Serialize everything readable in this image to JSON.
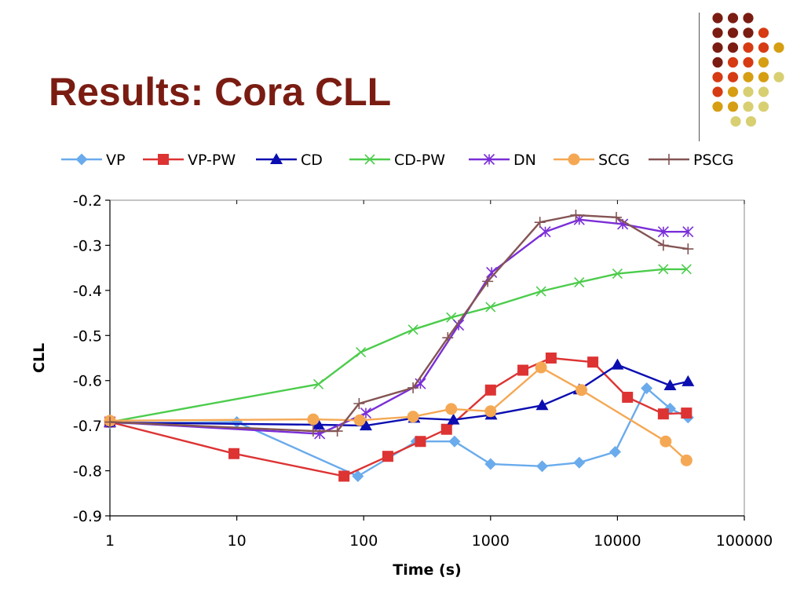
{
  "slide": {
    "title": "Results: Cora CLL"
  },
  "decoration": {
    "dot_rows": [
      [
        "#7a1c12",
        "#7a1c12",
        "#7a1c12"
      ],
      [
        "#7a1c12",
        "#7a1c12",
        "#7a1c12",
        "#d63b13"
      ],
      [
        "#7a1c12",
        "#7a1c12",
        "#d63b13",
        "#d63b13",
        "#d69e12"
      ],
      [
        "#7a1c12",
        "#d63b13",
        "#d63b13",
        "#d69e12"
      ],
      [
        "#d63b13",
        "#d63b13",
        "#d69e12",
        "#d69e12",
        "#d8cf72"
      ],
      [
        "#d63b13",
        "#d69e12",
        "#d8cf72",
        "#d8cf72"
      ],
      [
        "#d69e12",
        "#d69e12",
        "#d8cf72",
        "#d8cf72"
      ],
      [
        "#d8cf72",
        "#d8cf72"
      ]
    ]
  },
  "chart_data": {
    "type": "line",
    "title": "",
    "xlabel": "Time (s)",
    "ylabel": "CLL",
    "x_scale": "log",
    "xlim": [
      1,
      100000
    ],
    "ylim": [
      -0.9,
      -0.2
    ],
    "x_ticks": [
      1,
      10,
      100,
      1000,
      10000,
      100000
    ],
    "x_tick_labels": [
      "1",
      "10",
      "100",
      "1000",
      "10000",
      "100000"
    ],
    "y_ticks": [
      -0.2,
      -0.3,
      -0.4,
      -0.5,
      -0.6,
      -0.7,
      -0.8,
      -0.9
    ],
    "y_tick_labels": [
      "-0.2",
      "-0.3",
      "-0.4",
      "-0.5",
      "-0.6",
      "-0.7",
      "-0.8",
      "-0.9"
    ],
    "grid": false,
    "legend_position": "top",
    "series": [
      {
        "name": "VP",
        "color": "#6aabec",
        "marker": "diamond",
        "points": [
          [
            1,
            -0.695
          ],
          [
            10,
            -0.692
          ],
          [
            90,
            -0.812
          ],
          [
            260,
            -0.735
          ],
          [
            520,
            -0.735
          ],
          [
            1000,
            -0.785
          ],
          [
            2550,
            -0.79
          ],
          [
            5000,
            -0.782
          ],
          [
            9600,
            -0.758
          ],
          [
            17000,
            -0.617
          ],
          [
            26000,
            -0.662
          ],
          [
            36000,
            -0.682
          ]
        ]
      },
      {
        "name": "VP-PW",
        "color": "#dd3333",
        "marker": "square",
        "points": [
          [
            1,
            -0.692
          ],
          [
            9.5,
            -0.762
          ],
          [
            70,
            -0.812
          ],
          [
            155,
            -0.768
          ],
          [
            280,
            -0.735
          ],
          [
            450,
            -0.708
          ],
          [
            1000,
            -0.621
          ],
          [
            1800,
            -0.577
          ],
          [
            3000,
            -0.55
          ],
          [
            6400,
            -0.559
          ],
          [
            12000,
            -0.637
          ],
          [
            23000,
            -0.674
          ],
          [
            35000,
            -0.672
          ]
        ]
      },
      {
        "name": "CD",
        "color": "#0b0eb0",
        "marker": "triangle",
        "points": [
          [
            1,
            -0.693
          ],
          [
            44,
            -0.698
          ],
          [
            104,
            -0.7
          ],
          [
            250,
            -0.683
          ],
          [
            510,
            -0.687
          ],
          [
            1010,
            -0.676
          ],
          [
            2550,
            -0.655
          ],
          [
            5000,
            -0.62
          ],
          [
            10000,
            -0.565
          ],
          [
            26000,
            -0.611
          ],
          [
            36000,
            -0.602
          ]
        ]
      },
      {
        "name": "CD-PW",
        "color": "#4ccc4c",
        "marker": "x",
        "points": [
          [
            1,
            -0.692
          ],
          [
            44,
            -0.608
          ],
          [
            95,
            -0.537
          ],
          [
            245,
            -0.487
          ],
          [
            490,
            -0.46
          ],
          [
            1000,
            -0.437
          ],
          [
            2500,
            -0.402
          ],
          [
            5000,
            -0.382
          ],
          [
            10000,
            -0.363
          ],
          [
            23000,
            -0.353
          ],
          [
            35000,
            -0.353
          ]
        ]
      },
      {
        "name": "DN",
        "color": "#7a2ed8",
        "marker": "asterisk",
        "points": [
          [
            1,
            -0.692
          ],
          [
            45,
            -0.718
          ],
          [
            104,
            -0.672
          ],
          [
            280,
            -0.607
          ],
          [
            560,
            -0.477
          ],
          [
            1020,
            -0.36
          ],
          [
            2700,
            -0.27
          ],
          [
            5000,
            -0.243
          ],
          [
            11000,
            -0.253
          ],
          [
            23000,
            -0.27
          ],
          [
            36000,
            -0.27
          ]
        ]
      },
      {
        "name": "SCG",
        "color": "#f5a854",
        "marker": "circle",
        "points": [
          [
            1,
            -0.689
          ],
          [
            40,
            -0.686
          ],
          [
            93,
            -0.688
          ],
          [
            245,
            -0.68
          ],
          [
            490,
            -0.663
          ],
          [
            1000,
            -0.668
          ],
          [
            2500,
            -0.571
          ],
          [
            5200,
            -0.621
          ],
          [
            24000,
            -0.735
          ],
          [
            35000,
            -0.777
          ]
        ]
      },
      {
        "name": "PSCG",
        "color": "#845454",
        "marker": "plus",
        "points": [
          [
            1,
            -0.692
          ],
          [
            40,
            -0.712
          ],
          [
            62,
            -0.712
          ],
          [
            92,
            -0.651
          ],
          [
            245,
            -0.616
          ],
          [
            460,
            -0.505
          ],
          [
            950,
            -0.38
          ],
          [
            2450,
            -0.249
          ],
          [
            4700,
            -0.233
          ],
          [
            9800,
            -0.238
          ],
          [
            23000,
            -0.3
          ],
          [
            36000,
            -0.308
          ]
        ]
      }
    ]
  }
}
